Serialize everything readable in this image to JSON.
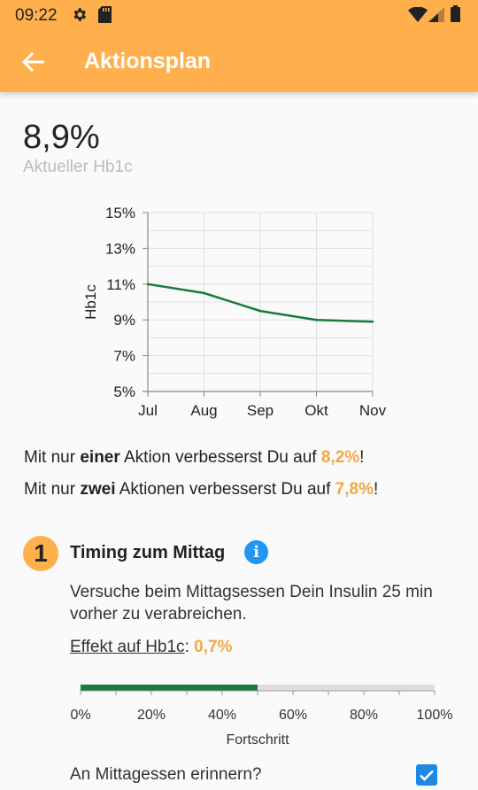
{
  "status_bar": {
    "time": "09:22"
  },
  "app_bar": {
    "title": "Aktionsplan"
  },
  "current": {
    "value": "8,9%",
    "label": "Aktueller Hb1c"
  },
  "chart_data": {
    "type": "line",
    "categories": [
      "Jul",
      "Aug",
      "Sep",
      "Okt",
      "Nov"
    ],
    "y_ticks": [
      "15%",
      "13%",
      "11%",
      "9%",
      "7%",
      "5%"
    ],
    "ylim": [
      5,
      15
    ],
    "ylabel": "Hb1c",
    "series": [
      {
        "values": [
          11.0,
          10.5,
          9.5,
          9.0,
          8.9
        ]
      }
    ],
    "line_color": "#1a7a40",
    "grid": true
  },
  "messages": {
    "one": {
      "prefix": "Mit nur ",
      "bold": "einer",
      "middle": " Aktion verbesserst Du auf ",
      "value": "8,2%",
      "suffix": "!"
    },
    "two": {
      "prefix": "Mit nur ",
      "bold": "zwei",
      "middle": " Aktionen verbesserst Du auf ",
      "value": "7,8%",
      "suffix": "!"
    }
  },
  "action": {
    "number": "1",
    "title": "Timing zum Mittag",
    "info_symbol": "i",
    "description": "Versuche beim Mittagsessen Dein Insulin 25 min vorher zu verabreichen.",
    "effect_label": "Effekt auf Hb1c",
    "effect_sep": ": ",
    "effect_value": "0,7%",
    "progress": {
      "value_percent": 50,
      "ticks": [
        "0%",
        "20%",
        "40%",
        "60%",
        "80%",
        "100%"
      ],
      "label": "Fortschritt",
      "fill_color": "#1a7a40"
    },
    "reminder_label": "An Mittagessen erinnern?",
    "reminder_checked": true
  },
  "colors": {
    "accent": "#ffb04d",
    "highlight": "#f5a742",
    "check": "#1e88e5",
    "info": "#2196f3"
  }
}
